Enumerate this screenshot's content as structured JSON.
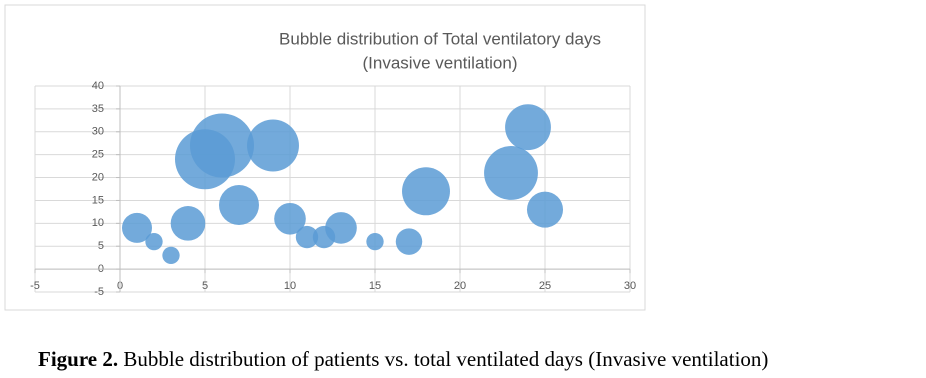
{
  "chart_data": {
    "type": "bubble",
    "title": [
      "Bubble distribution of  Total ventilatory days",
      "(Invasive ventilation)"
    ],
    "x": [
      1,
      2,
      3,
      4,
      5,
      6,
      7,
      9,
      10,
      11,
      12,
      13,
      15,
      17,
      18,
      23,
      24,
      25
    ],
    "values": [
      9,
      6,
      3,
      10,
      24,
      27,
      14,
      27,
      11,
      7,
      7,
      9,
      6,
      6,
      17,
      21,
      31,
      13
    ],
    "sizes": [
      9,
      3,
      3,
      12,
      36,
      41,
      16,
      27,
      10,
      5,
      5,
      10,
      3,
      7,
      23,
      29,
      21,
      13
    ],
    "color": "#5b9bd5",
    "xlim": [
      -5,
      30
    ],
    "xticks": [
      -5,
      0,
      5,
      10,
      15,
      20,
      25,
      30
    ],
    "ylim": [
      -5,
      40
    ],
    "yticks": [
      -5,
      0,
      5,
      10,
      15,
      20,
      25,
      30,
      35,
      40
    ],
    "grid": true
  },
  "caption": {
    "label": "Figure 2.",
    "text": " Bubble distribution of patients vs. total ventilated days (Invasive ventilation)"
  }
}
